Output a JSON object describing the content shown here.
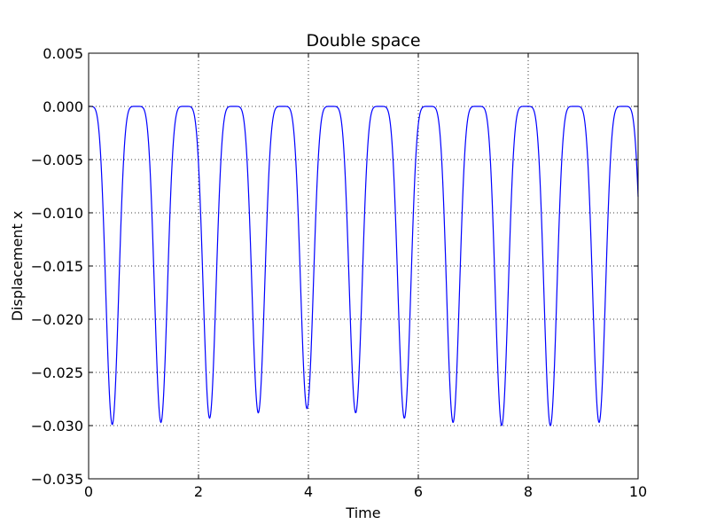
{
  "chart_data": {
    "type": "line",
    "title": "Double space",
    "xlabel": "Time",
    "ylabel": "Displacement x",
    "xlim": [
      0,
      10
    ],
    "ylim": [
      -0.035,
      0.005
    ],
    "xticks": [
      0,
      2,
      4,
      6,
      8,
      10
    ],
    "xtick_labels": [
      "0",
      "2",
      "4",
      "6",
      "8",
      "10"
    ],
    "yticks": [
      0.005,
      0.0,
      -0.005,
      -0.01,
      -0.015,
      -0.02,
      -0.025,
      -0.03,
      -0.035
    ],
    "ytick_labels": [
      "0.005",
      "0.000",
      "−0.005",
      "−0.010",
      "−0.015",
      "−0.020",
      "−0.025",
      "−0.030",
      "−0.035"
    ],
    "grid": true,
    "line_color": "#0000ff",
    "minima": [
      {
        "t": 0.43,
        "x": -0.0299
      },
      {
        "t": 1.32,
        "x": -0.0297
      },
      {
        "t": 2.2,
        "x": -0.0293
      },
      {
        "t": 3.09,
        "x": -0.0288
      },
      {
        "t": 3.97,
        "x": -0.0284
      },
      {
        "t": 4.86,
        "x": -0.0288
      },
      {
        "t": 5.74,
        "x": -0.0293
      },
      {
        "t": 6.63,
        "x": -0.0297
      },
      {
        "t": 7.52,
        "x": -0.03
      },
      {
        "t": 8.41,
        "x": -0.03
      },
      {
        "t": 9.29,
        "x": -0.0297
      }
    ],
    "end_value": -0.0095
  }
}
